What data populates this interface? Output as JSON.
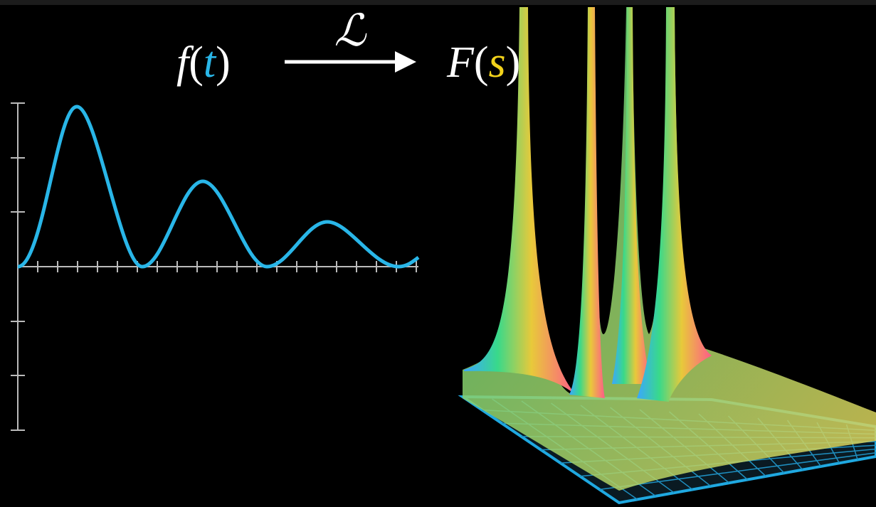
{
  "formula": {
    "left": {
      "function": "f",
      "open": "(",
      "variable": "t",
      "close": ")"
    },
    "operator": "ℒ",
    "right": {
      "function": "F",
      "open": "(",
      "variable": "s",
      "close": ")"
    }
  }
}
